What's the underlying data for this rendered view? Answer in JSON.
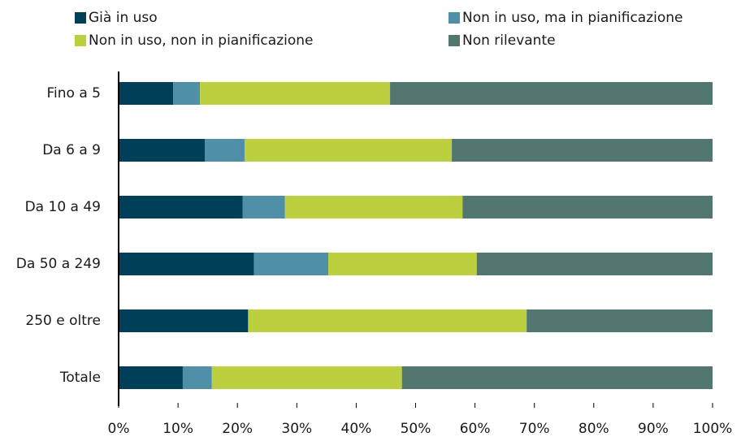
{
  "chart_data": {
    "type": "stacked_barh",
    "categories": [
      "Fino a 5",
      "Da 6 a 9",
      "Da 10 a 49",
      "Da 50 a 249",
      "250 e oltre",
      "Totale"
    ],
    "series": [
      {
        "name": "Già in uso",
        "color": "#003f58",
        "values": [
          9.2,
          14.5,
          20.9,
          22.8,
          21.8,
          10.8
        ]
      },
      {
        "name": "Non in uso, ma in pianificazione",
        "color": "#4f8fa8",
        "values": [
          4.5,
          6.7,
          7.1,
          12.5,
          0,
          4.9
        ]
      },
      {
        "name": "Non in uso, non in pianificazione",
        "color": "#bccf3f",
        "values": [
          32.0,
          34.9,
          29.9,
          25.0,
          46.9,
          32.0
        ]
      },
      {
        "name": "Non rilevante",
        "color": "#527670",
        "values": [
          54.3,
          43.9,
          42.1,
          39.7,
          31.3,
          52.3
        ]
      }
    ],
    "xlim": [
      0,
      100
    ],
    "xticks": [
      {
        "value": 0,
        "label": "0%"
      },
      {
        "value": 10,
        "label": "10%"
      },
      {
        "value": 20,
        "label": "20%"
      },
      {
        "value": 30,
        "label": "30%"
      },
      {
        "value": 40,
        "label": "40%"
      },
      {
        "value": 50,
        "label": "50%"
      },
      {
        "value": 60,
        "label": "60%"
      },
      {
        "value": 70,
        "label": "70%"
      },
      {
        "value": 80,
        "label": "80%"
      },
      {
        "value": 90,
        "label": "90%"
      },
      {
        "value": 100,
        "label": "100%"
      }
    ],
    "legend": "top",
    "grid": false
  }
}
